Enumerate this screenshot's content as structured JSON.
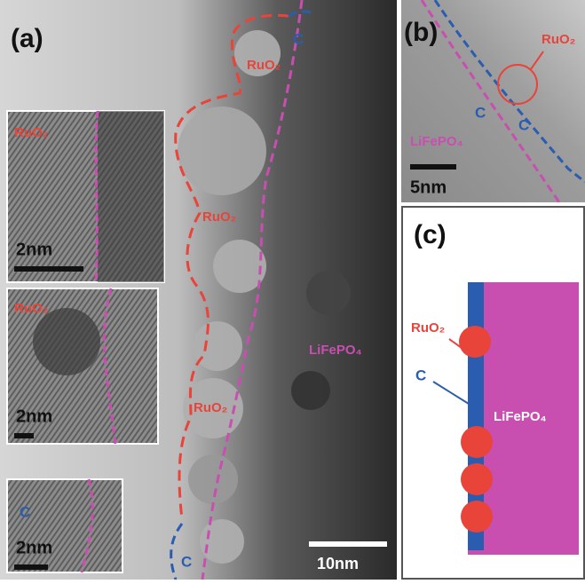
{
  "panel_a": {
    "label": "(a)",
    "carbon_top": "C",
    "ruo2_labels": [
      "RuO₂",
      "RuO₂",
      "RuO₂"
    ],
    "lifepo4": "LiFePO₄",
    "carbon_bottom": "C",
    "scale": "10nm",
    "insets": [
      {
        "label": "RuO₂",
        "scale": "2nm"
      },
      {
        "label": "RuO₂",
        "scale": "2nm"
      },
      {
        "label": "C",
        "scale": "2nm"
      }
    ]
  },
  "panel_b": {
    "label": "(b)",
    "ruo2": "RuO₂",
    "carbon": [
      "C",
      "C"
    ],
    "lifepo4": "LiFePO₄",
    "scale": "5nm"
  },
  "panel_c": {
    "label": "(c)",
    "ruo2": "RuO₂",
    "carbon": "C",
    "lifepo4": "LiFePO₄"
  }
}
